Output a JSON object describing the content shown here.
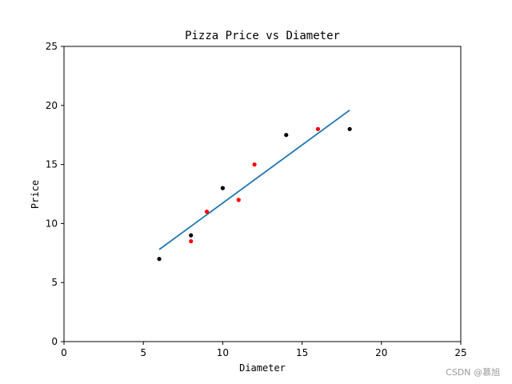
{
  "chart_data": {
    "type": "scatter",
    "title": "Pizza Price vs Diameter",
    "xlabel": "Diameter",
    "ylabel": "Price",
    "xlim": [
      0,
      25
    ],
    "ylim": [
      0,
      25
    ],
    "xticks": [
      0,
      5,
      10,
      15,
      20,
      25
    ],
    "yticks": [
      0,
      5,
      10,
      15,
      20,
      25
    ],
    "grid": false,
    "series": [
      {
        "kind": "scatter",
        "color": "#000000",
        "points": [
          [
            6,
            7
          ],
          [
            8,
            9
          ],
          [
            10,
            13
          ],
          [
            14,
            17.5
          ],
          [
            18,
            18
          ]
        ]
      },
      {
        "kind": "scatter",
        "color": "#ff0000",
        "points": [
          [
            8,
            8.5
          ],
          [
            9,
            11
          ],
          [
            11,
            12
          ],
          [
            12,
            15
          ],
          [
            16,
            18
          ]
        ]
      },
      {
        "kind": "line",
        "color": "#1f77b4",
        "points": [
          [
            6,
            7.8
          ],
          [
            18,
            19.6
          ]
        ]
      }
    ]
  },
  "watermark": "CSDN @慕旭"
}
